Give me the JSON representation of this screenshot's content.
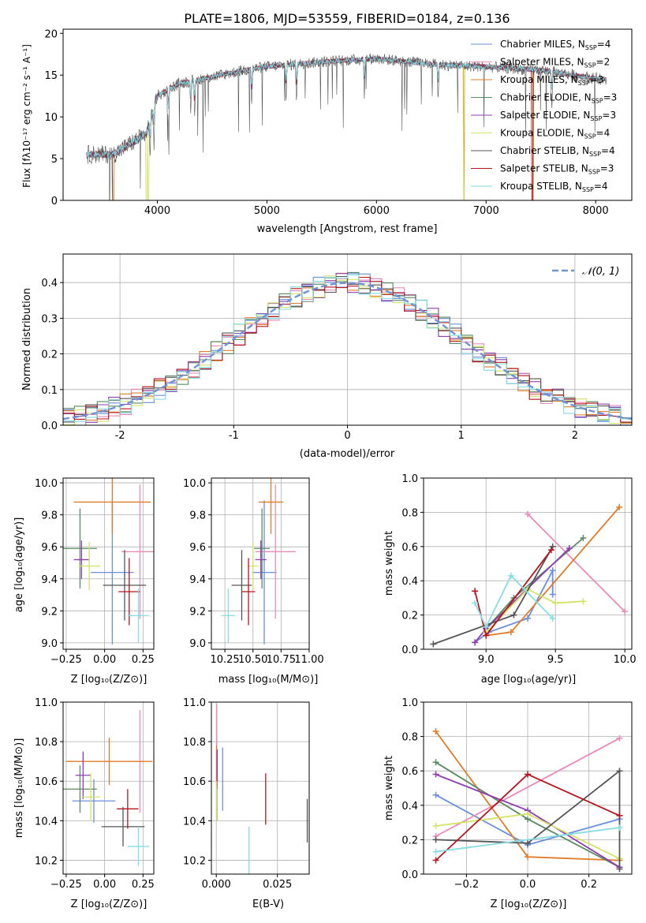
{
  "figure_title": "PLATE=1806, MJD=53559, FIBERID=0184, z=0.136",
  "colors": {
    "Chabrier MILES": "#6b8fdc",
    "Salpeter MILES": "#e98bb8",
    "Kroupa MILES": "#e07b28",
    "Chabrier ELODIE": "#5a8a62",
    "Salpeter ELODIE": "#8e3fb0",
    "Kroupa ELODIE": "#d3e26a",
    "Chabrier STELIB": "#555555",
    "Salpeter STELIB": "#b5151f",
    "Kroupa STELIB": "#86dde3",
    "normal": "#6e93d6"
  },
  "chart_data": [
    {
      "id": "spectrum",
      "type": "line",
      "xlabel": "wavelength [Angstrom, rest frame]",
      "ylabel": "Flux [fλ10⁻¹⁷ erg cm⁻² s⁻¹ A⁻¹]",
      "xlim": [
        3140,
        8330
      ],
      "ylim": [
        0,
        20.5
      ],
      "xticks": [
        4000,
        5000,
        6000,
        7000,
        8000
      ],
      "yticks": [
        0,
        5,
        10,
        15,
        20
      ],
      "grid": false,
      "legend_position": "top-right",
      "legend": [
        {
          "label": "Chabrier MILES, N",
          "sub": "SSP",
          "tail": "=4",
          "key": "Chabrier MILES"
        },
        {
          "label": "Salpeter MILES, N",
          "sub": "SSP",
          "tail": "=2",
          "key": "Salpeter MILES"
        },
        {
          "label": "Kroupa MILES, N",
          "sub": "SSP",
          "tail": "=3",
          "key": "Kroupa MILES"
        },
        {
          "label": "Chabrier ELODIE, N",
          "sub": "SSP",
          "tail": "=3",
          "key": "Chabrier ELODIE"
        },
        {
          "label": "Salpeter ELODIE, N",
          "sub": "SSP",
          "tail": "=3",
          "key": "Salpeter ELODIE"
        },
        {
          "label": "Kroupa ELODIE, N",
          "sub": "SSP",
          "tail": "=4",
          "key": "Kroupa ELODIE"
        },
        {
          "label": "Chabrier STELIB, N",
          "sub": "SSP",
          "tail": "=4",
          "key": "Chabrier STELIB"
        },
        {
          "label": "Salpeter STELIB, N",
          "sub": "SSP",
          "tail": "=3",
          "key": "Salpeter STELIB"
        },
        {
          "label": "Kroupa STELIB, N",
          "sub": "SSP",
          "tail": "=4",
          "key": "Kroupa STELIB"
        }
      ],
      "continuum": {
        "x": [
          3350,
          3600,
          3900,
          4000,
          4200,
          4500,
          4800,
          5000,
          5500,
          6000,
          6500,
          7000,
          7500,
          8000,
          8100
        ],
        "y": [
          5.5,
          5.5,
          8.0,
          12.5,
          14.0,
          14.8,
          15.6,
          16.0,
          16.6,
          17.0,
          16.3,
          16.0,
          15.6,
          14.6,
          14.5
        ]
      },
      "wavelength_range": [
        3350,
        8100
      ],
      "dropouts": [
        {
          "key": "Kroupa MILES",
          "x": [
            3600,
            3600,
            6800,
            7430
          ]
        },
        {
          "key": "Kroupa ELODIE",
          "x": [
            3900,
            3920,
            6800
          ]
        },
        {
          "key": "Salpeter STELIB",
          "x": [
            7420
          ]
        }
      ],
      "absorption_lines": [
        3934,
        3969,
        4102,
        4305,
        4340,
        4861,
        5175,
        5270,
        5890,
        6563,
        7600
      ]
    },
    {
      "id": "residuals",
      "type": "step-histogram",
      "xlabel": "(data-model)/error",
      "ylabel": "Normed distribution",
      "xlim": [
        -2.5,
        2.5
      ],
      "ylim": [
        0,
        0.48
      ],
      "xticks": [
        -2,
        -1,
        0,
        1,
        2
      ],
      "yticks": [
        0.0,
        0.1,
        0.2,
        0.3,
        0.4
      ],
      "grid": true,
      "bin_width": 0.1,
      "bins_from": -2.5,
      "legend_label": "𝒩(0, 1)",
      "legend_position": "top-right",
      "noise_amplitude": 0.03
    },
    {
      "id": "age-vs-Z",
      "type": "errorbar",
      "xlabel": "Z [log₁₀(Z/Z⊙)]",
      "ylabel": "age  [log₁₀(age/yr)]",
      "xlim": [
        -0.27,
        0.32
      ],
      "ylim": [
        8.96,
        10.03
      ],
      "xticks": [
        -0.25,
        0.0,
        0.25
      ],
      "xticklabels": [
        "−0.25",
        "0.00",
        "0.25"
      ],
      "yticks": [
        9.0,
        9.2,
        9.4,
        9.6,
        9.8,
        10.0
      ],
      "grid": true,
      "points": [
        {
          "key": "Chabrier MILES",
          "x": 0.05,
          "xerr": 0.14,
          "y": 9.44,
          "yerr": 0.45
        },
        {
          "key": "Salpeter MILES",
          "x": 0.23,
          "xerr": 0.12,
          "y": 9.57,
          "yerr": 0.42
        },
        {
          "key": "Kroupa MILES",
          "x": 0.05,
          "xerr": 0.25,
          "y": 9.88,
          "yerr": 0.2
        },
        {
          "key": "Chabrier ELODIE",
          "x": -0.16,
          "xerr": 0.11,
          "y": 9.59,
          "yerr": 0.25
        },
        {
          "key": "Salpeter ELODIE",
          "x": -0.15,
          "xerr": 0.05,
          "y": 9.52,
          "yerr": 0.12
        },
        {
          "key": "Kroupa ELODIE",
          "x": -0.1,
          "xerr": 0.07,
          "y": 9.48,
          "yerr": 0.15
        },
        {
          "key": "Chabrier STELIB",
          "x": 0.13,
          "xerr": 0.14,
          "y": 9.36,
          "yerr": 0.22
        },
        {
          "key": "Salpeter STELIB",
          "x": 0.16,
          "xerr": 0.07,
          "y": 9.32,
          "yerr": 0.21
        },
        {
          "key": "Kroupa STELIB",
          "x": 0.22,
          "xerr": 0.07,
          "y": 9.17,
          "yerr": 0.17
        }
      ]
    },
    {
      "id": "age-vs-mass",
      "type": "errorbar",
      "xlabel": "mass [log₁₀(M/M⊙)]",
      "ylabel": "",
      "xlim": [
        10.13,
        11.0
      ],
      "ylim": [
        8.96,
        10.03
      ],
      "xticks": [
        10.25,
        10.5,
        10.75,
        11.0
      ],
      "xticklabels": [
        "10.25",
        "10.50",
        "10.75",
        "11.00"
      ],
      "yticks": [
        9.0,
        9.2,
        9.4,
        9.6,
        9.8,
        10.0
      ],
      "grid": true,
      "points": [
        {
          "key": "Chabrier MILES",
          "x": 10.6,
          "xerr": 0.11,
          "y": 9.44,
          "yerr": 0.45
        },
        {
          "key": "Salpeter MILES",
          "x": 10.7,
          "xerr": 0.18,
          "y": 9.57,
          "yerr": 0.42
        },
        {
          "key": "Kroupa MILES",
          "x": 10.66,
          "xerr": 0.11,
          "y": 9.88,
          "yerr": 0.2
        },
        {
          "key": "Chabrier ELODIE",
          "x": 10.58,
          "xerr": 0.07,
          "y": 9.59,
          "yerr": 0.25
        },
        {
          "key": "Salpeter ELODIE",
          "x": 10.57,
          "xerr": 0.05,
          "y": 9.52,
          "yerr": 0.12
        },
        {
          "key": "Kroupa ELODIE",
          "x": 10.5,
          "xerr": 0.05,
          "y": 9.48,
          "yerr": 0.15
        },
        {
          "key": "Chabrier STELIB",
          "x": 10.4,
          "xerr": 0.09,
          "y": 9.36,
          "yerr": 0.22
        },
        {
          "key": "Salpeter STELIB",
          "x": 10.46,
          "xerr": 0.06,
          "y": 9.32,
          "yerr": 0.21
        },
        {
          "key": "Kroupa STELIB",
          "x": 10.28,
          "xerr": 0.06,
          "y": 9.17,
          "yerr": 0.17
        }
      ]
    },
    {
      "id": "weight-vs-age",
      "type": "line",
      "xlabel": "age  [log₁₀(age/yr)]",
      "ylabel": "mass weight",
      "xlim": [
        8.55,
        10.05
      ],
      "ylim": [
        0.0,
        1.0
      ],
      "xticks": [
        9.0,
        9.5,
        10.0
      ],
      "xticklabels": [
        "9.0",
        "9.5",
        "10.0"
      ],
      "yticks": [
        0.0,
        0.2,
        0.4,
        0.6,
        0.8,
        1.0
      ],
      "grid": true,
      "series": [
        {
          "key": "Chabrier MILES",
          "x": [
            8.92,
            9.02,
            9.3,
            9.48,
            9.48
          ],
          "y": [
            0.04,
            0.1,
            0.18,
            0.46,
            0.32
          ]
        },
        {
          "key": "Salpeter MILES",
          "x": [
            9.3,
            10.0
          ],
          "y": [
            0.79,
            0.22
          ]
        },
        {
          "key": "Kroupa MILES",
          "x": [
            9.0,
            9.18,
            9.96
          ],
          "y": [
            0.08,
            0.1,
            0.83
          ]
        },
        {
          "key": "Chabrier ELODIE",
          "x": [
            9.0,
            9.2,
            9.7
          ],
          "y": [
            0.12,
            0.3,
            0.65
          ]
        },
        {
          "key": "Salpeter ELODIE",
          "x": [
            8.92,
            9.0,
            9.6
          ],
          "y": [
            0.04,
            0.12,
            0.59
          ]
        },
        {
          "key": "Kroupa ELODIE",
          "x": [
            9.0,
            9.3,
            9.5,
            9.7
          ],
          "y": [
            0.1,
            0.35,
            0.27,
            0.28
          ]
        },
        {
          "key": "Chabrier STELIB",
          "x": [
            8.62,
            9.2,
            9.48
          ],
          "y": [
            0.03,
            0.2,
            0.6
          ]
        },
        {
          "key": "Salpeter STELIB",
          "x": [
            8.92,
            9.0,
            9.47
          ],
          "y": [
            0.34,
            0.08,
            0.58
          ]
        },
        {
          "key": "Kroupa STELIB",
          "x": [
            8.92,
            9.0,
            9.18,
            9.48
          ],
          "y": [
            0.27,
            0.13,
            0.43,
            0.18
          ]
        }
      ]
    },
    {
      "id": "mass-vs-Z",
      "type": "errorbar",
      "xlabel": "Z [log₁₀(Z/Z⊙)]",
      "ylabel": "mass [log₁₀(M/M⊙)]",
      "xlim": [
        -0.27,
        0.32
      ],
      "ylim": [
        10.13,
        11.0
      ],
      "xticks": [
        -0.25,
        0.0,
        0.25
      ],
      "xticklabels": [
        "−0.25",
        "0.00",
        "0.25"
      ],
      "yticks": [
        10.2,
        10.4,
        10.6,
        10.8,
        11.0
      ],
      "grid": true,
      "points": [
        {
          "key": "Chabrier MILES",
          "x": -0.07,
          "xerr": 0.14,
          "y": 10.5,
          "yerr": 0.11
        },
        {
          "key": "Salpeter MILES",
          "x": 0.23,
          "xerr": 0.04,
          "y": 10.7,
          "yerr": 0.26
        },
        {
          "key": "Kroupa MILES",
          "x": 0.03,
          "xerr": 0.28,
          "y": 10.7,
          "yerr": 0.12
        },
        {
          "key": "Chabrier ELODIE",
          "x": -0.16,
          "xerr": 0.11,
          "y": 10.56,
          "yerr": 0.12
        },
        {
          "key": "Salpeter ELODIE",
          "x": -0.14,
          "xerr": 0.05,
          "y": 10.63,
          "yerr": 0.12
        },
        {
          "key": "Kroupa ELODIE",
          "x": -0.09,
          "xerr": 0.06,
          "y": 10.52,
          "yerr": 0.12
        },
        {
          "key": "Chabrier STELIB",
          "x": 0.12,
          "xerr": 0.14,
          "y": 10.37,
          "yerr": 0.1
        },
        {
          "key": "Salpeter STELIB",
          "x": 0.15,
          "xerr": 0.07,
          "y": 10.46,
          "yerr": 0.1
        },
        {
          "key": "Kroupa STELIB",
          "x": 0.22,
          "xerr": 0.07,
          "y": 10.27,
          "yerr": 0.1
        }
      ]
    },
    {
      "id": "mass-vs-ebv",
      "type": "errorbar",
      "xlabel": "E(B-V)",
      "ylabel": "",
      "xlim": [
        -0.002,
        0.038
      ],
      "ylim": [
        10.13,
        11.0
      ],
      "xticks": [
        0.0,
        0.025
      ],
      "xticklabels": [
        "0.000",
        "0.025"
      ],
      "yticks": [
        10.2,
        10.4,
        10.6,
        10.8,
        11.0
      ],
      "grid": true,
      "points": [
        {
          "key": "Chabrier MILES",
          "x": 0.0026,
          "xerr": 0,
          "y": 10.61,
          "yerr": 0.16
        },
        {
          "key": "Salpeter MILES",
          "x": 0.0002,
          "xerr": 0,
          "y": 10.85,
          "yerr": 0.14
        },
        {
          "key": "Kroupa MILES",
          "x": 0.0001,
          "xerr": 0,
          "y": 10.68,
          "yerr": 0.1
        },
        {
          "key": "Chabrier ELODIE",
          "x": 0.0003,
          "xerr": 0,
          "y": 10.5,
          "yerr": 0.1
        },
        {
          "key": "Salpeter ELODIE",
          "x": 0.0004,
          "xerr": 0,
          "y": 10.66,
          "yerr": 0.1
        },
        {
          "key": "Kroupa ELODIE",
          "x": 0.0002,
          "xerr": 0,
          "y": 10.5,
          "yerr": 0.1
        },
        {
          "key": "Chabrier STELIB",
          "x": 0.0372,
          "xerr": 0,
          "y": 10.4,
          "yerr": 0.11
        },
        {
          "key": "Salpeter STELIB",
          "x": 0.0202,
          "xerr": 0,
          "y": 10.51,
          "yerr": 0.13
        },
        {
          "key": "Kroupa STELIB",
          "x": 0.0134,
          "xerr": 0,
          "y": 10.25,
          "yerr": 0.12
        }
      ]
    },
    {
      "id": "weight-vs-Z",
      "type": "line",
      "xlabel": "Z [log₁₀(Z/Z⊙)]",
      "ylabel": "mass weight",
      "xlim": [
        -0.34,
        0.34
      ],
      "ylim": [
        0.0,
        1.0
      ],
      "xticks": [
        -0.2,
        0.0,
        0.2
      ],
      "xticklabels": [
        "−0.2",
        "0.0",
        "0.2"
      ],
      "yticks": [
        0.0,
        0.2,
        0.4,
        0.6,
        0.8,
        1.0
      ],
      "grid": true,
      "series": [
        {
          "key": "Chabrier MILES",
          "x": [
            -0.3,
            0.0,
            0.3
          ],
          "y": [
            0.46,
            0.17,
            0.32
          ]
        },
        {
          "key": "Salpeter MILES",
          "x": [
            -0.3,
            0.3
          ],
          "y": [
            0.22,
            0.79
          ]
        },
        {
          "key": "Kroupa MILES",
          "x": [
            -0.3,
            0.0,
            0.3
          ],
          "y": [
            0.83,
            0.1,
            0.08
          ]
        },
        {
          "key": "Chabrier ELODIE",
          "x": [
            -0.3,
            0.0,
            0.3
          ],
          "y": [
            0.65,
            0.32,
            0.04
          ]
        },
        {
          "key": "Salpeter ELODIE",
          "x": [
            -0.3,
            0.0,
            0.3
          ],
          "y": [
            0.58,
            0.37,
            0.04
          ]
        },
        {
          "key": "Kroupa ELODIE",
          "x": [
            -0.3,
            0.0,
            0.3
          ],
          "y": [
            0.28,
            0.35,
            0.09
          ]
        },
        {
          "key": "Chabrier STELIB",
          "x": [
            -0.3,
            0.0,
            0.3,
            0.3
          ],
          "y": [
            0.2,
            0.18,
            0.6,
            0.03
          ]
        },
        {
          "key": "Salpeter STELIB",
          "x": [
            -0.3,
            0.0,
            0.3
          ],
          "y": [
            0.08,
            0.58,
            0.34
          ]
        },
        {
          "key": "Kroupa STELIB",
          "x": [
            -0.3,
            0.3
          ],
          "y": [
            0.13,
            0.27
          ]
        }
      ]
    }
  ]
}
